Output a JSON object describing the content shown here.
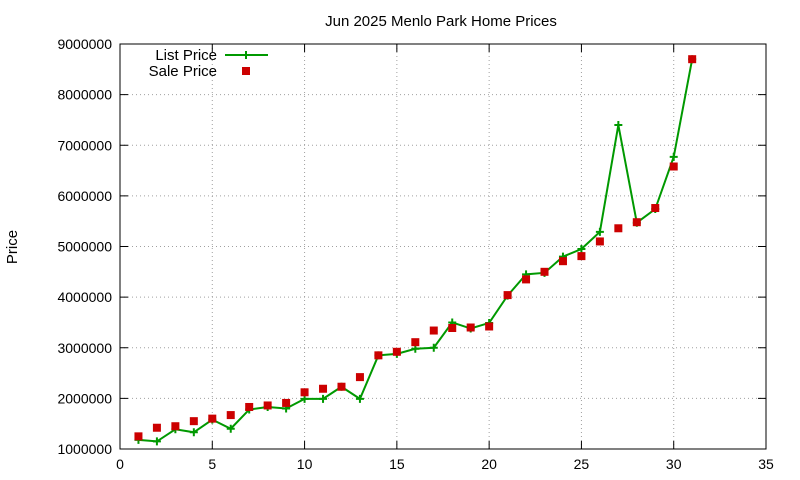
{
  "chart_data": {
    "type": "line",
    "title": "Jun 2025 Menlo Park Home Prices",
    "xlabel": "",
    "ylabel": "Price",
    "xlim": [
      0,
      35
    ],
    "ylim": [
      1000000,
      9000000
    ],
    "x_ticks": [
      0,
      5,
      10,
      15,
      20,
      25,
      30,
      35
    ],
    "y_ticks": [
      1000000,
      2000000,
      3000000,
      4000000,
      5000000,
      6000000,
      7000000,
      8000000,
      9000000
    ],
    "x_tick_labels": [
      "0",
      "5",
      "10",
      "15",
      "20",
      "25",
      "30",
      "35"
    ],
    "y_tick_labels": [
      "1000000",
      "2000000",
      "3000000",
      "4000000",
      "5000000",
      "6000000",
      "7000000",
      "8000000",
      "9000000"
    ],
    "grid": true,
    "legend_position": "top-left",
    "series": [
      {
        "name": "List Price",
        "style": "line+plus",
        "color": "#009900",
        "x": [
          1,
          2,
          3,
          4,
          5,
          6,
          7,
          8,
          9,
          10,
          11,
          12,
          13,
          14,
          15,
          16,
          17,
          18,
          19,
          20,
          21,
          22,
          23,
          24,
          25,
          26,
          27,
          28,
          29,
          30,
          31
        ],
        "y": [
          1180000,
          1150000,
          1390000,
          1330000,
          1580000,
          1400000,
          1780000,
          1830000,
          1800000,
          1990000,
          1990000,
          2230000,
          1990000,
          2850000,
          2880000,
          2980000,
          3000000,
          3500000,
          3380000,
          3490000,
          4030000,
          4450000,
          4480000,
          4800000,
          4950000,
          5290000,
          7400000,
          5470000,
          5740000,
          6770000,
          8700000
        ]
      },
      {
        "name": "Sale Price",
        "style": "square",
        "color": "#cc0000",
        "x": [
          1,
          2,
          3,
          4,
          5,
          6,
          7,
          8,
          9,
          10,
          11,
          12,
          13,
          14,
          15,
          16,
          17,
          18,
          19,
          20,
          21,
          22,
          23,
          24,
          25,
          26,
          27,
          28,
          29,
          30,
          31
        ],
        "y": [
          1250000,
          1420000,
          1450000,
          1550000,
          1600000,
          1670000,
          1830000,
          1860000,
          1910000,
          2120000,
          2190000,
          2230000,
          2420000,
          2850000,
          2920000,
          3110000,
          3340000,
          3390000,
          3400000,
          3420000,
          4040000,
          4350000,
          4500000,
          4710000,
          4810000,
          5100000,
          5360000,
          5480000,
          5760000,
          6580000,
          8700000
        ]
      }
    ]
  }
}
